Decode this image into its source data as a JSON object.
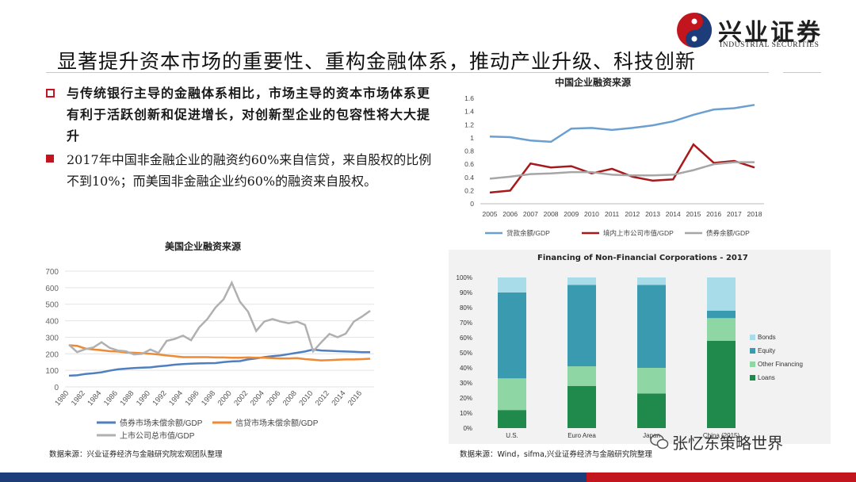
{
  "header": {
    "logo_cn": "兴业证券",
    "logo_en": "INDUSTRIAL SECURITIES",
    "title": "显著提升资本市场的重要性、重构金融体系，推动产业升级、科技创新"
  },
  "bullets": [
    "与传统银行主导的金融体系相比，市场主导的资本市场体系更有利于活跃创新和促进增长，对创新型企业的包容性将大大提升",
    "2017年中国非金融企业的融资约60%来自信贷，来自股权的比例不到10%；而美国非金融企业约60%的融资来自股权。"
  ],
  "colors": {
    "accent_red": "#c2151d",
    "navy": "#1c3d7a"
  },
  "chart_data": [
    {
      "type": "line",
      "title": "中国企业融资来源",
      "x": [
        "2005",
        "2006",
        "2007",
        "2008",
        "2009",
        "2010",
        "2011",
        "2012",
        "2013",
        "2014",
        "2015",
        "2016",
        "2017",
        "2018"
      ],
      "ylim": [
        0,
        1.6
      ],
      "yticks": [
        "0",
        "0.2",
        "0.4",
        "0.6",
        "0.8",
        "1",
        "1.2",
        "1.4",
        "1.6"
      ],
      "legend_position": "bottom",
      "series": [
        {
          "name": "贷款余额/GDP",
          "color": "#6a9fd0",
          "values": [
            1.02,
            1.01,
            0.96,
            0.94,
            1.14,
            1.15,
            1.12,
            1.15,
            1.19,
            1.25,
            1.35,
            1.43,
            1.45,
            1.5
          ]
        },
        {
          "name": "境内上市公司市值/GDP",
          "color": "#a8191c",
          "values": [
            0.17,
            0.2,
            0.61,
            0.55,
            0.57,
            0.46,
            0.53,
            0.41,
            0.35,
            0.37,
            0.9,
            0.62,
            0.65,
            0.55
          ]
        },
        {
          "name": "债券余额/GDP",
          "color": "#a6a6a6",
          "values": [
            0.38,
            0.41,
            0.45,
            0.46,
            0.48,
            0.48,
            0.44,
            0.43,
            0.43,
            0.44,
            0.51,
            0.6,
            0.63,
            0.63
          ]
        }
      ]
    },
    {
      "type": "line",
      "title": "美国企业融资来源",
      "x": [
        "1980",
        "1981",
        "1982",
        "1983",
        "1984",
        "1985",
        "1986",
        "1987",
        "1988",
        "1989",
        "1990",
        "1991",
        "1992",
        "1993",
        "1994",
        "1995",
        "1996",
        "1997",
        "1998",
        "1999",
        "2000",
        "2001",
        "2002",
        "2003",
        "2004",
        "2005",
        "2006",
        "2007",
        "2008",
        "2009",
        "2010",
        "2011",
        "2012",
        "2013",
        "2014",
        "2015",
        "2016",
        "2017"
      ],
      "xtick_labels": [
        "1980",
        "1982",
        "1984",
        "1986",
        "1988",
        "1990",
        "1992",
        "1994",
        "1996",
        "1998",
        "2000",
        "2002",
        "2004",
        "2006",
        "2008",
        "2010",
        "2012",
        "2014",
        "2016"
      ],
      "ylim": [
        0,
        700
      ],
      "yticks": [
        "0",
        "100",
        "200",
        "300",
        "400",
        "500",
        "600",
        "700"
      ],
      "legend_position": "bottom",
      "series": [
        {
          "name": "债券市场未偿余额/GDP",
          "color": "#4f7fbf",
          "values": [
            68,
            70,
            78,
            82,
            88,
            98,
            106,
            110,
            114,
            116,
            118,
            124,
            128,
            134,
            138,
            140,
            142,
            143,
            144,
            150,
            154,
            156,
            166,
            172,
            180,
            186,
            190,
            198,
            206,
            214,
            226,
            220,
            218,
            216,
            214,
            212,
            210,
            210
          ]
        },
        {
          "name": "信贷市场未偿余额/GDP",
          "color": "#ee8a35",
          "values": [
            252,
            248,
            232,
            226,
            222,
            216,
            214,
            208,
            206,
            204,
            200,
            196,
            190,
            185,
            180,
            180,
            180,
            180,
            178,
            178,
            176,
            176,
            178,
            176,
            176,
            174,
            172,
            172,
            174,
            168,
            164,
            160,
            162,
            164,
            166,
            166,
            168,
            170
          ]
        },
        {
          "name": "上市公司总市值/GDP",
          "color": "#b0b0b0",
          "values": [
            255,
            210,
            228,
            238,
            270,
            236,
            220,
            215,
            196,
            200,
            226,
            205,
            278,
            290,
            310,
            282,
            360,
            410,
            480,
            530,
            630,
            515,
            455,
            338,
            395,
            410,
            395,
            385,
            395,
            375,
            215,
            270,
            320,
            300,
            322,
            395,
            425,
            460
          ]
        }
      ]
    },
    {
      "type": "bar",
      "stacked": true,
      "title": "Financing of Non-Financial Corporations - 2017",
      "categories": [
        "U.S.",
        "Euro Area",
        "Japan",
        "China (2015)"
      ],
      "yticks": [
        "0%",
        "10%",
        "20%",
        "30%",
        "40%",
        "50%",
        "60%",
        "70%",
        "80%",
        "90%",
        "100%"
      ],
      "legend_position": "right",
      "series": [
        {
          "name": "Loans",
          "color": "#1f8a4c",
          "values": [
            12,
            28,
            23,
            58
          ]
        },
        {
          "name": "Other Financing",
          "color": "#8ed6a3",
          "values": [
            21,
            13,
            17,
            15
          ]
        },
        {
          "name": "Equity",
          "color": "#3a9ab0",
          "values": [
            57,
            54,
            55,
            5
          ]
        },
        {
          "name": "Bonds",
          "color": "#a8dce8",
          "values": [
            10,
            5,
            5,
            22
          ]
        }
      ]
    }
  ],
  "sources": {
    "left": "数据来源：兴业证券经济与金融研究院宏观团队整理",
    "right": "数据来源：Wind，sifma,兴业证券经济与金融研究院整理"
  },
  "watermark": "张忆东策略世界"
}
